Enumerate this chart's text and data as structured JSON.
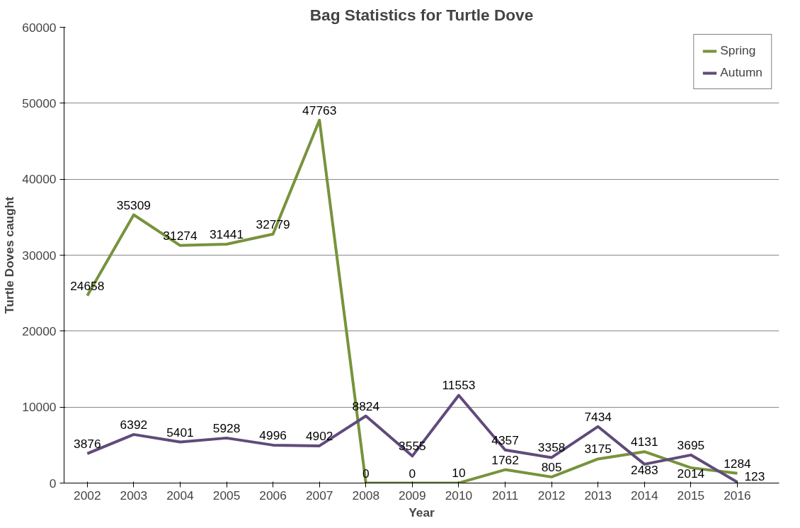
{
  "chart_data": {
    "type": "line",
    "title": "Bag Statistics for Turtle Dove",
    "xlabel": "Year",
    "ylabel": "Turtle Doves caught",
    "categories": [
      "2002",
      "2003",
      "2004",
      "2005",
      "2006",
      "2007",
      "2008",
      "2009",
      "2010",
      "2011",
      "2012",
      "2013",
      "2014",
      "2015",
      "2016"
    ],
    "series": [
      {
        "name": "Spring",
        "color": "#77933c",
        "values": [
          24658,
          35309,
          31274,
          31441,
          32779,
          47763,
          0,
          0,
          10,
          1762,
          805,
          3175,
          4131,
          2014,
          1284
        ]
      },
      {
        "name": "Autumn",
        "color": "#604a7b",
        "values": [
          3876,
          6392,
          5401,
          5928,
          4996,
          4902,
          8824,
          3555,
          11553,
          4357,
          3358,
          7434,
          2483,
          3695,
          123
        ]
      }
    ],
    "ylim": [
      0,
      60000
    ],
    "yticks": [
      0,
      10000,
      20000,
      30000,
      40000,
      50000,
      60000
    ],
    "grid": "y",
    "legend": "top right",
    "data_labels": true,
    "marker": "none",
    "line_style": "solid"
  }
}
